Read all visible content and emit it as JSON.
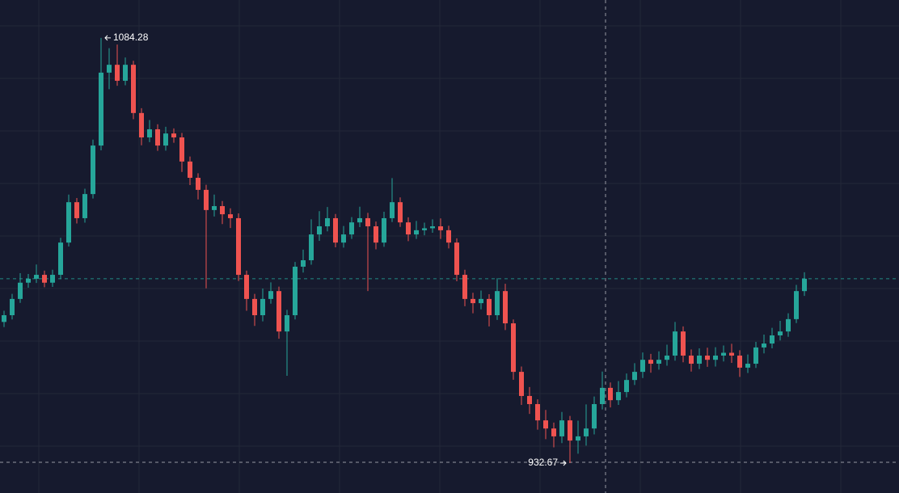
{
  "chart_data": {
    "type": "candlestick",
    "open": [
      983.0,
      985.4,
      991.2,
      997.0,
      998.4,
      999.8,
      997.0,
      999.8,
      1011.3,
      1025.7,
      1020.0,
      1028.6,
      1045.9,
      1071.9,
      1074.7,
      1069.0,
      1074.7,
      1057.5,
      1048.8,
      1051.7,
      1045.9,
      1050.2,
      1048.8,
      1040.2,
      1034.4,
      1030.1,
      1022.9,
      1024.3,
      1021.4,
      1020.0,
      999.8,
      991.2,
      985.4,
      991.2,
      994.0,
      979.6,
      985.4,
      1002.7,
      1005.0,
      1014.2,
      1017.1,
      1020.0,
      1011.3,
      1014.2,
      1018.5,
      1020.0,
      1017.1,
      1011.3,
      1020.0,
      1025.7,
      1018.5,
      1014.2,
      1015.7,
      1016.4,
      1017.1,
      1015.7,
      1011.3,
      999.8,
      991.2,
      989.7,
      991.2,
      985.4,
      994.0,
      982.5,
      965.2,
      956.6,
      953.7,
      947.9,
      945.0,
      942.2,
      947.9,
      940.7,
      942.2,
      945.0,
      953.7,
      959.5,
      955.1,
      958.0,
      962.3,
      965.2,
      969.5,
      968.1,
      969.5,
      971.0,
      979.6,
      971.0,
      968.1,
      971.0,
      969.5,
      971.0,
      972.0,
      971.0,
      966.7,
      968.1,
      973.9,
      975.3,
      978.2,
      979.6,
      984.0,
      994.0
    ],
    "high": [
      987.0,
      993.0,
      1000.4,
      1000.1,
      1003.5,
      1001.3,
      1001.6,
      1013.0,
      1028.4,
      1027.2,
      1030.5,
      1048.0,
      1084.28,
      1080.6,
      1081.9,
      1077.3,
      1076.1,
      1059.2,
      1055.0,
      1053.5,
      1052.6,
      1052.0,
      1050.4,
      1042.0,
      1036.0,
      1031.9,
      1028.4,
      1026.1,
      1023.5,
      1021.7,
      1001.3,
      993.0,
      994.9,
      997.1,
      995.6,
      987.3,
      1004.4,
      1008.8,
      1019.6,
      1022.5,
      1024.0,
      1021.5,
      1017.2,
      1020.4,
      1024.1,
      1021.9,
      1018.8,
      1022.3,
      1034.3,
      1027.4,
      1020.3,
      1019.0,
      1018.4,
      1019.6,
      1019.9,
      1017.3,
      1012.8,
      1001.6,
      993.4,
      994.2,
      992.9,
      998.6,
      996.6,
      983.9,
      967.1,
      959.8,
      955.4,
      951.6,
      947.1,
      950.9,
      949.5,
      947.8,
      953.6,
      956.4,
      965.3,
      961.4,
      961.9,
      964.6,
      968.3,
      972.1,
      971.6,
      972.5,
      974.9,
      983.0,
      981.4,
      973.2,
      973.6,
      973.8,
      974.0,
      974.6,
      975.2,
      972.9,
      971.4,
      975.9,
      978.5,
      980.9,
      983.4,
      986.1,
      996.2,
      1000.7
    ],
    "low": [
      981.2,
      983.9,
      989.8,
      995.2,
      996.9,
      995.4,
      995.5,
      998.3,
      1009.9,
      1018.1,
      1018.4,
      1027.0,
      1044.2,
      1066.0,
      1067.2,
      1067.4,
      1055.3,
      1046.0,
      1047.1,
      1044.0,
      1044.1,
      1046.9,
      1036.5,
      1031.8,
      1026.7,
      995.0,
      1020.6,
      1017.9,
      1016.5,
      997.6,
      987.0,
      981.6,
      983.2,
      989.5,
      977.0,
      963.8,
      983.9,
      1000.6,
      1003.4,
      1011.9,
      1015.3,
      1009.6,
      1009.5,
      1012.6,
      1016.8,
      994.0,
      1008.9,
      1009.8,
      1018.6,
      1016.9,
      1011.8,
      1012.6,
      1013.9,
      1014.8,
      1012.6,
      1009.2,
      997.5,
      988.6,
      986.1,
      987.5,
      981.4,
      983.7,
      980.1,
      962.4,
      953.4,
      950.2,
      944.6,
      941.2,
      938.3,
      939.8,
      932.67,
      936.0,
      938.9,
      942.9,
      951.8,
      952.5,
      953.4,
      956.1,
      960.5,
      963.0,
      964.9,
      966.0,
      967.4,
      969.2,
      968.6,
      965.3,
      966.2,
      967.0,
      967.1,
      968.9,
      968.4,
      963.4,
      964.8,
      966.6,
      971.8,
      973.6,
      976.4,
      977.7,
      982.6,
      992.3
    ],
    "close": [
      985.4,
      991.2,
      997.0,
      998.4,
      999.8,
      997.0,
      999.8,
      1011.3,
      1025.7,
      1020.0,
      1028.6,
      1045.9,
      1071.9,
      1074.7,
      1069.0,
      1074.7,
      1057.5,
      1048.8,
      1051.7,
      1045.9,
      1050.2,
      1048.8,
      1040.2,
      1034.4,
      1030.1,
      1022.9,
      1024.3,
      1021.4,
      1020.0,
      999.8,
      991.2,
      985.4,
      991.2,
      994.0,
      979.6,
      985.4,
      1002.7,
      1005.0,
      1014.2,
      1017.1,
      1020.0,
      1011.3,
      1014.2,
      1018.5,
      1020.0,
      1017.1,
      1011.3,
      1020.0,
      1025.7,
      1018.5,
      1014.2,
      1015.7,
      1016.4,
      1017.1,
      1015.7,
      1011.3,
      999.8,
      991.2,
      989.7,
      991.2,
      985.4,
      994.0,
      982.5,
      965.2,
      956.6,
      953.7,
      947.9,
      945.0,
      942.2,
      947.9,
      940.7,
      942.2,
      945.0,
      953.7,
      959.5,
      955.1,
      958.0,
      962.3,
      965.2,
      969.5,
      968.1,
      969.5,
      971.0,
      979.6,
      971.0,
      968.1,
      971.0,
      969.5,
      971.0,
      972.0,
      971.0,
      966.7,
      968.1,
      973.9,
      975.3,
      978.2,
      979.6,
      984.0,
      994.0,
      998.4
    ],
    "up_color": "#26a69a",
    "down_color": "#ef5350",
    "ylim": [
      922.0,
      1097.8
    ],
    "max_label_index": 12,
    "min_label_index": 70
  }
}
